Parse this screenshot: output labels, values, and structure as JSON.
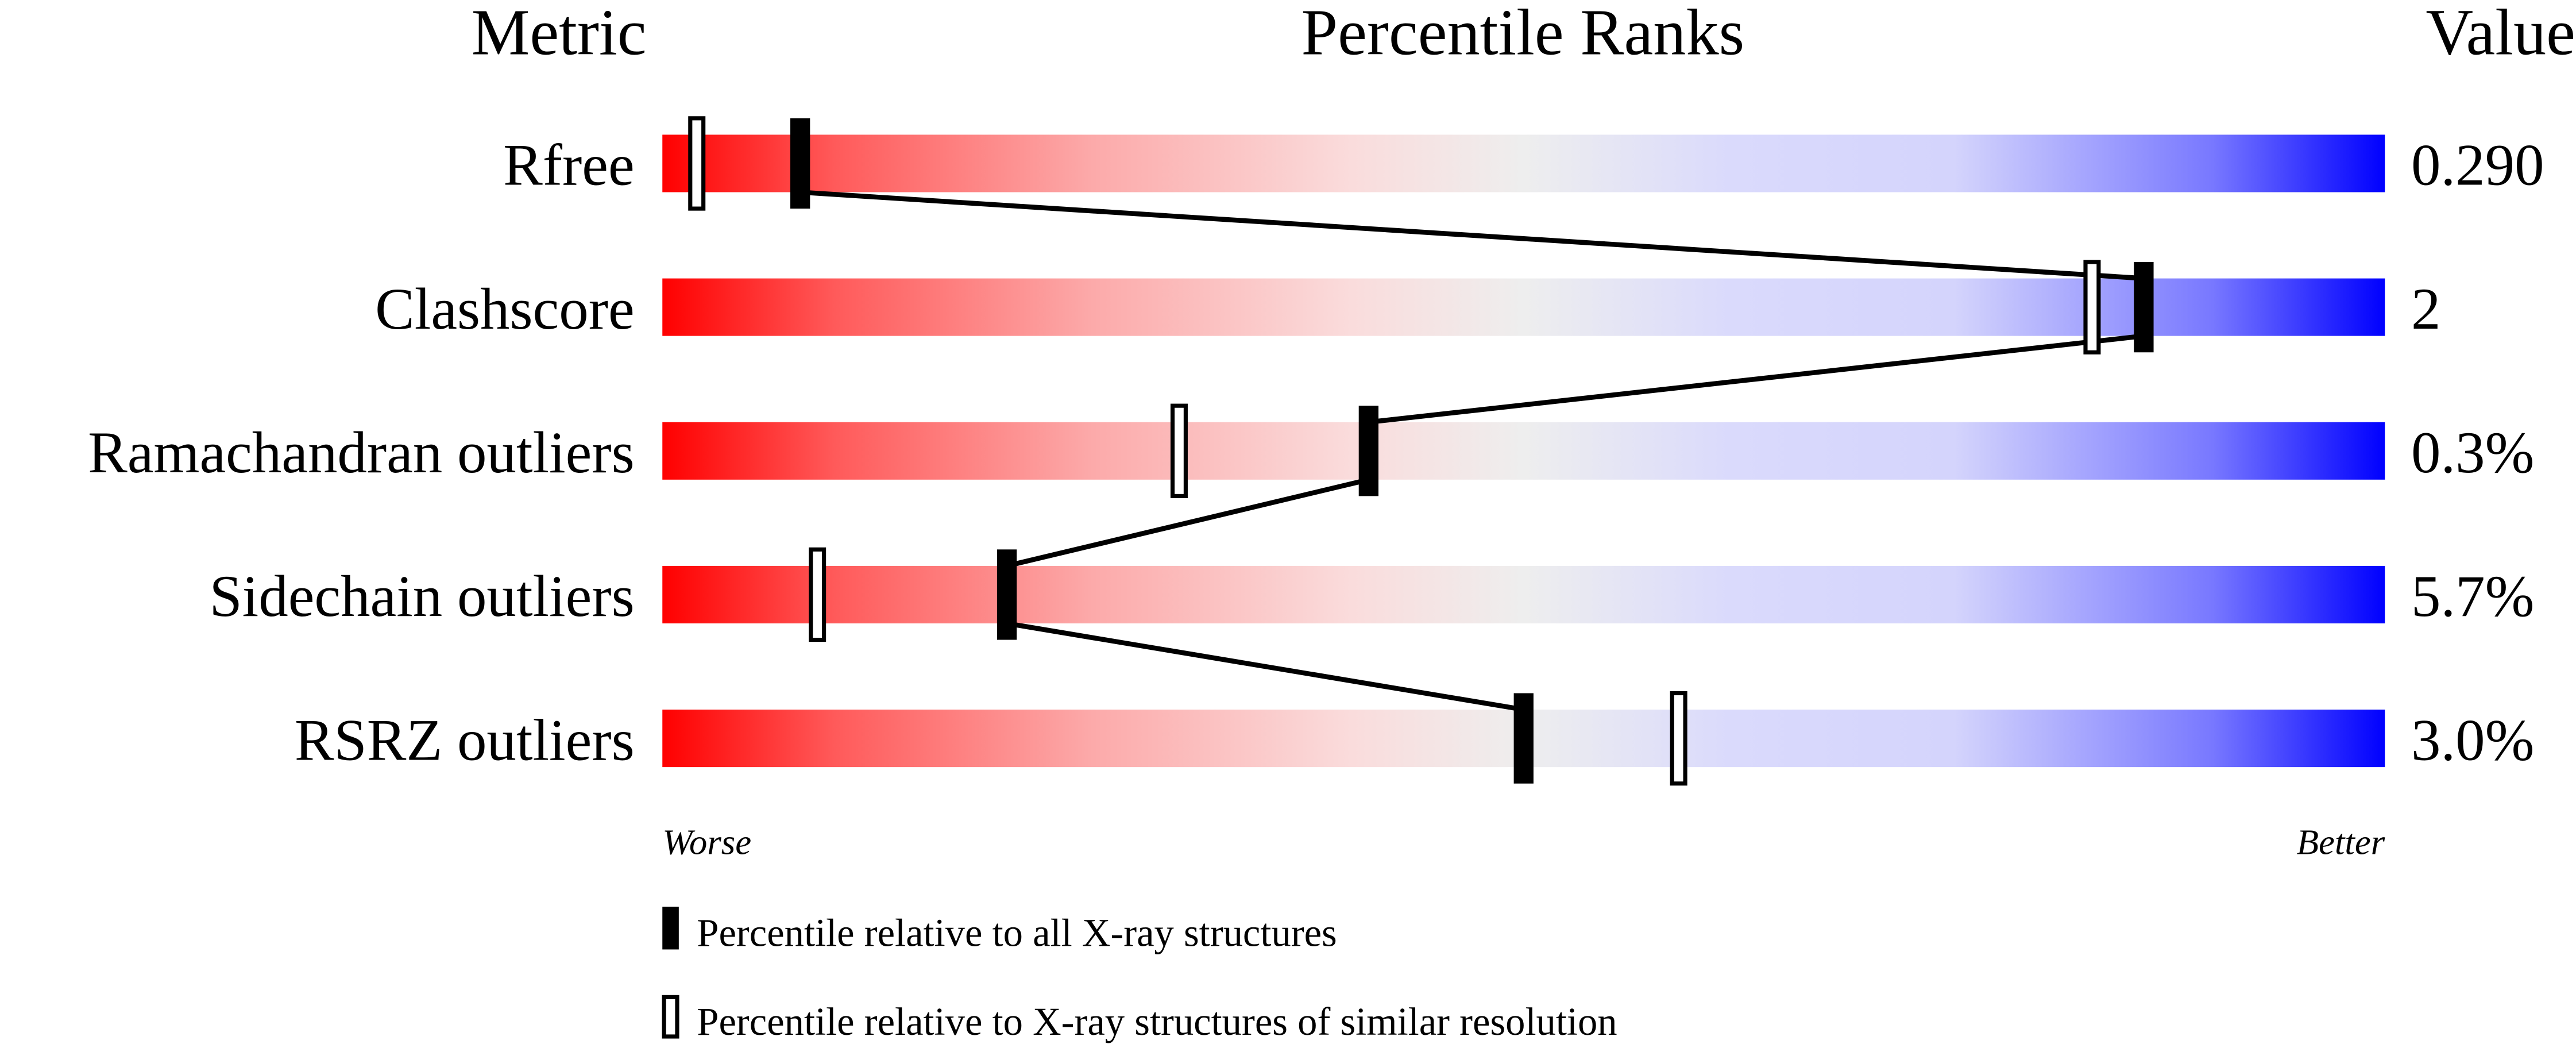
{
  "chart_data": {
    "type": "percentile-slider",
    "headers": {
      "metric": "Metric",
      "ranks": "Percentile Ranks",
      "value": "Value"
    },
    "xlim": [
      0,
      100
    ],
    "axis_labels": {
      "left": "Worse",
      "right": "Better"
    },
    "metrics": [
      {
        "name": "Rfree",
        "value": "0.290",
        "percentile_all": 8,
        "percentile_similar": 2
      },
      {
        "name": "Clashscore",
        "value": "2",
        "percentile_all": 86,
        "percentile_similar": 83
      },
      {
        "name": "Ramachandran outliers",
        "value": "0.3%",
        "percentile_all": 41,
        "percentile_similar": 30
      },
      {
        "name": "Sidechain outliers",
        "value": "5.7%",
        "percentile_all": 20,
        "percentile_similar": 9
      },
      {
        "name": "RSRZ outliers",
        "value": "3.0%",
        "percentile_all": 50,
        "percentile_similar": 59
      }
    ],
    "legend": {
      "filled": "Percentile relative to all X-ray structures",
      "open": "Percentile relative to X-ray structures of similar resolution"
    },
    "colors": {
      "worse": "#ff0000",
      "middle": "#eeeeee",
      "better": "#0000ff",
      "marker": "#000000"
    }
  }
}
